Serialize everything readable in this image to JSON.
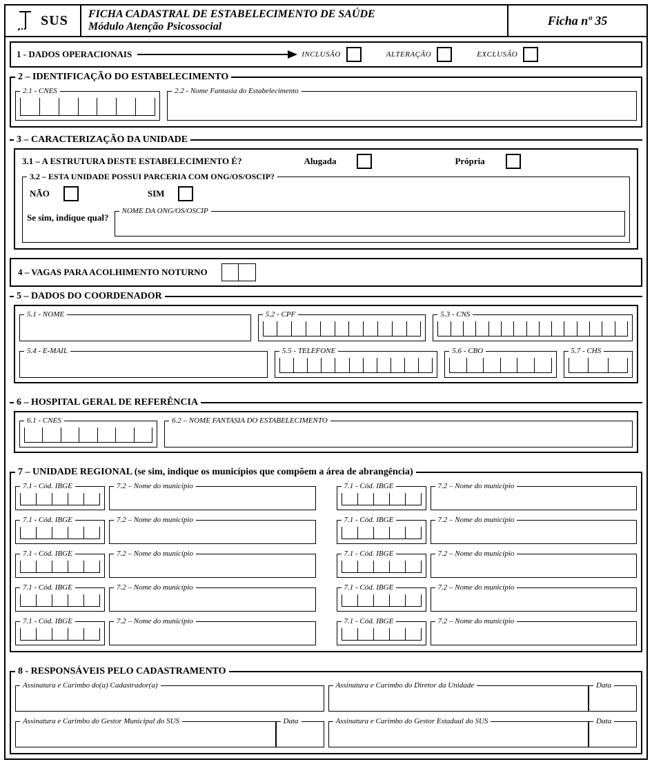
{
  "header": {
    "logo_text": "SUS",
    "title_line1": "FICHA CADASTRAL DE ESTABELECIMENTO DE SAÚDE",
    "title_line2": "Módulo Atenção Psicossocial",
    "ficha_label": "Ficha nº 35"
  },
  "sec1": {
    "title": "1 - DADOS OPERACIONAIS",
    "inclusao": "INCLUSÃO",
    "alteracao": "ALTERAÇÃO",
    "exclusao": "EXCLUSÃO"
  },
  "sec2": {
    "title": "2 – IDENTIFICAÇÃO DO ESTABELECIMENTO",
    "cnes_label": "2.1 - CNES",
    "nome_label": "2.2 - Nome Fantasia do Estabelecimento",
    "cnes_cells": 7
  },
  "sec3": {
    "title": "3 – CARACTERIZAÇÃO DA UNIDADE",
    "q31": "3.1 – A ESTRUTURA DESTE ESTABELECIMENTO É?",
    "alugada": "Alugada",
    "propria": "Própria",
    "q32_title": "3.2 – ESTA UNIDADE POSSUI PARCERIA COM ONG/OS/OSCIP?",
    "nao": "NÃO",
    "sim": "SIM",
    "sesim": "Se sim, indique qual?",
    "ong_label": "NOME DA ONG/OS/OSCIP"
  },
  "sec4": {
    "title": "4 – VAGAS PARA ACOLHIMENTO NOTURNO",
    "cells": 2
  },
  "sec5": {
    "title": "5 – DADOS DO COORDENADOR",
    "nome": "5.1 - NOME",
    "cpf": "5.2 - CPF",
    "cpf_cells": 11,
    "cns": "5.3 - CNS",
    "cns_cells": 15,
    "email": "5.4 - E-MAIL",
    "tel": "5.5 - TELEFONE",
    "tel_cells": 11,
    "cbo": "5.6 - CBO",
    "cbo_cells": 6,
    "chs": "5.7 - CHS",
    "chs_cells": 3
  },
  "sec6": {
    "title": "6 – HOSPITAL GERAL DE REFERÊNCIA",
    "cnes": "6.1 - CNES",
    "cnes_cells": 7,
    "nome": "6.2 – NOME FANTASIA DO ESTABELECIMENTO"
  },
  "sec7": {
    "title": "7 – UNIDADE REGIONAL (se sim, indique os municípios que compõem a área de abrangência)",
    "ibge": "7.1 - Cód. IBGE",
    "ibge_cells": 5,
    "muni": "7.2 – Nome do município",
    "rows": 10
  },
  "sec8": {
    "title": "8 - RESPONSÁVEIS PELO CADASTRAMENTO",
    "cad": "Assinatura e Carimbo do(a) Cadastrador(a)",
    "dir": "Assinatura e Carimbo do Diretor da Unidade",
    "mun": "Assinatura e Carimbo do Gestor Municipal do SUS",
    "est": "Assinatura e Carimbo do Gestor Estadual do SUS",
    "data": "Data"
  }
}
